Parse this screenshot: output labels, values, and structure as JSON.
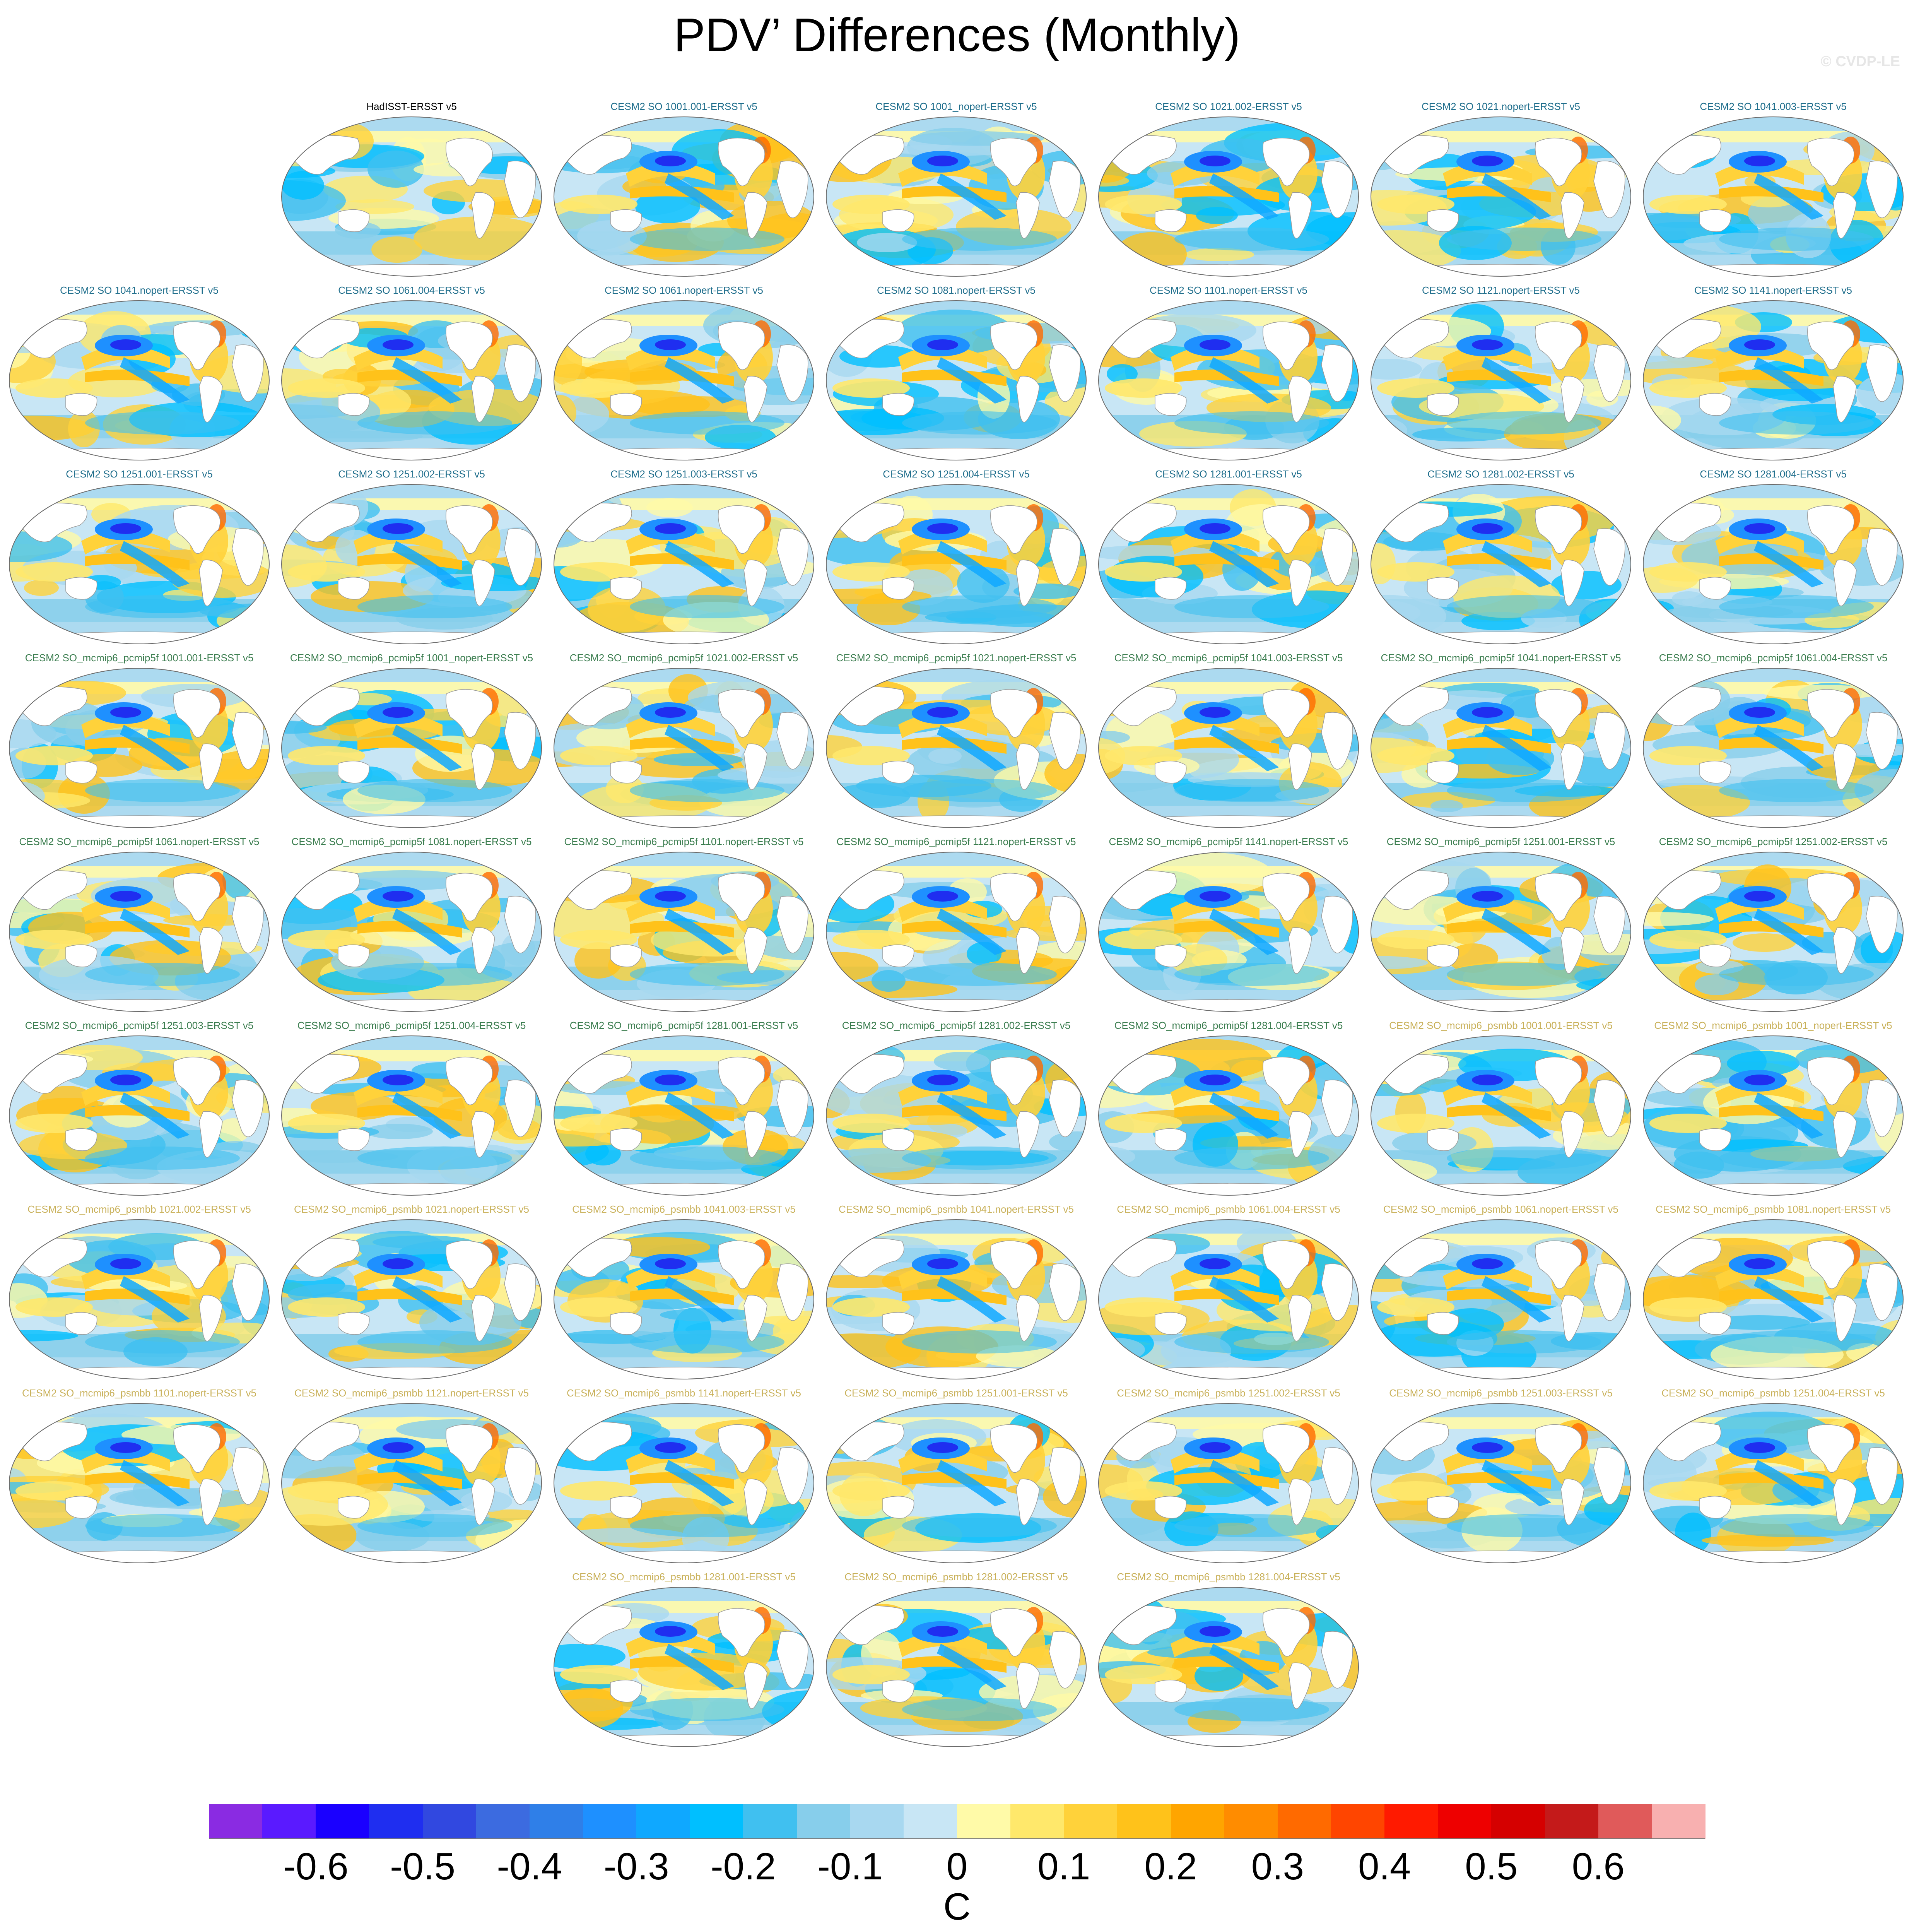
{
  "title": "PDV’ Differences (Monthly)",
  "copyright": "© CVDP-LE",
  "panel_title_colors": {
    "observation": "#000000",
    "cesm2_so": "#1f6e8c",
    "pcmip5f": "#3b7d4f",
    "psmbb": "#c9b15a"
  },
  "panels": [
    {
      "title": "HadISST-ERSST v5",
      "group": "observation"
    },
    {
      "title": "CESM2 SO 1001.001-ERSST v5",
      "group": "cesm2_so"
    },
    {
      "title": "CESM2 SO 1001_nopert-ERSST v5",
      "group": "cesm2_so"
    },
    {
      "title": "CESM2 SO 1021.002-ERSST v5",
      "group": "cesm2_so"
    },
    {
      "title": "CESM2 SO 1021.nopert-ERSST v5",
      "group": "cesm2_so"
    },
    {
      "title": "CESM2 SO 1041.003-ERSST v5",
      "group": "cesm2_so"
    },
    {
      "title": "CESM2 SO 1041.nopert-ERSST v5",
      "group": "cesm2_so"
    },
    {
      "title": "CESM2 SO 1061.004-ERSST v5",
      "group": "cesm2_so"
    },
    {
      "title": "CESM2 SO 1061.nopert-ERSST v5",
      "group": "cesm2_so"
    },
    {
      "title": "CESM2 SO 1081.nopert-ERSST v5",
      "group": "cesm2_so"
    },
    {
      "title": "CESM2 SO 1101.nopert-ERSST v5",
      "group": "cesm2_so"
    },
    {
      "title": "CESM2 SO 1121.nopert-ERSST v5",
      "group": "cesm2_so"
    },
    {
      "title": "CESM2 SO 1141.nopert-ERSST v5",
      "group": "cesm2_so"
    },
    {
      "title": "CESM2 SO 1251.001-ERSST v5",
      "group": "cesm2_so"
    },
    {
      "title": "CESM2 SO 1251.002-ERSST v5",
      "group": "cesm2_so"
    },
    {
      "title": "CESM2 SO 1251.003-ERSST v5",
      "group": "cesm2_so"
    },
    {
      "title": "CESM2 SO 1251.004-ERSST v5",
      "group": "cesm2_so"
    },
    {
      "title": "CESM2 SO 1281.001-ERSST v5",
      "group": "cesm2_so"
    },
    {
      "title": "CESM2 SO 1281.002-ERSST v5",
      "group": "cesm2_so"
    },
    {
      "title": "CESM2 SO 1281.004-ERSST v5",
      "group": "cesm2_so"
    },
    {
      "title": "CESM2 SO_mcmip6_pcmip5f 1001.001-ERSST v5",
      "group": "pcmip5f"
    },
    {
      "title": "CESM2 SO_mcmip6_pcmip5f 1001_nopert-ERSST v5",
      "group": "pcmip5f"
    },
    {
      "title": "CESM2 SO_mcmip6_pcmip5f 1021.002-ERSST v5",
      "group": "pcmip5f"
    },
    {
      "title": "CESM2 SO_mcmip6_pcmip5f 1021.nopert-ERSST v5",
      "group": "pcmip5f"
    },
    {
      "title": "CESM2 SO_mcmip6_pcmip5f 1041.003-ERSST v5",
      "group": "pcmip5f"
    },
    {
      "title": "CESM2 SO_mcmip6_pcmip5f 1041.nopert-ERSST v5",
      "group": "pcmip5f"
    },
    {
      "title": "CESM2 SO_mcmip6_pcmip5f 1061.004-ERSST v5",
      "group": "pcmip5f"
    },
    {
      "title": "CESM2 SO_mcmip6_pcmip5f 1061.nopert-ERSST v5",
      "group": "pcmip5f"
    },
    {
      "title": "CESM2 SO_mcmip6_pcmip5f 1081.nopert-ERSST v5",
      "group": "pcmip5f"
    },
    {
      "title": "CESM2 SO_mcmip6_pcmip5f 1101.nopert-ERSST v5",
      "group": "pcmip5f"
    },
    {
      "title": "CESM2 SO_mcmip6_pcmip5f 1121.nopert-ERSST v5",
      "group": "pcmip5f"
    },
    {
      "title": "CESM2 SO_mcmip6_pcmip5f 1141.nopert-ERSST v5",
      "group": "pcmip5f"
    },
    {
      "title": "CESM2 SO_mcmip6_pcmip5f 1251.001-ERSST v5",
      "group": "pcmip5f"
    },
    {
      "title": "CESM2 SO_mcmip6_pcmip5f 1251.002-ERSST v5",
      "group": "pcmip5f"
    },
    {
      "title": "CESM2 SO_mcmip6_pcmip5f 1251.003-ERSST v5",
      "group": "pcmip5f"
    },
    {
      "title": "CESM2 SO_mcmip6_pcmip5f 1251.004-ERSST v5",
      "group": "pcmip5f"
    },
    {
      "title": "CESM2 SO_mcmip6_pcmip5f 1281.001-ERSST v5",
      "group": "pcmip5f"
    },
    {
      "title": "CESM2 SO_mcmip6_pcmip5f 1281.002-ERSST v5",
      "group": "pcmip5f"
    },
    {
      "title": "CESM2 SO_mcmip6_pcmip5f 1281.004-ERSST v5",
      "group": "pcmip5f"
    },
    {
      "title": "CESM2 SO_mcmip6_psmbb 1001.001-ERSST v5",
      "group": "psmbb"
    },
    {
      "title": "CESM2 SO_mcmip6_psmbb 1001_nopert-ERSST v5",
      "group": "psmbb"
    },
    {
      "title": "CESM2 SO_mcmip6_psmbb 1021.002-ERSST v5",
      "group": "psmbb"
    },
    {
      "title": "CESM2 SO_mcmip6_psmbb 1021.nopert-ERSST v5",
      "group": "psmbb"
    },
    {
      "title": "CESM2 SO_mcmip6_psmbb 1041.003-ERSST v5",
      "group": "psmbb"
    },
    {
      "title": "CESM2 SO_mcmip6_psmbb 1041.nopert-ERSST v5",
      "group": "psmbb"
    },
    {
      "title": "CESM2 SO_mcmip6_psmbb 1061.004-ERSST v5",
      "group": "psmbb"
    },
    {
      "title": "CESM2 SO_mcmip6_psmbb 1061.nopert-ERSST v5",
      "group": "psmbb"
    },
    {
      "title": "CESM2 SO_mcmip6_psmbb 1081.nopert-ERSST v5",
      "group": "psmbb"
    },
    {
      "title": "CESM2 SO_mcmip6_psmbb 1101.nopert-ERSST v5",
      "group": "psmbb"
    },
    {
      "title": "CESM2 SO_mcmip6_psmbb 1121.nopert-ERSST v5",
      "group": "psmbb"
    },
    {
      "title": "CESM2 SO_mcmip6_psmbb 1141.nopert-ERSST v5",
      "group": "psmbb"
    },
    {
      "title": "CESM2 SO_mcmip6_psmbb 1251.001-ERSST v5",
      "group": "psmbb"
    },
    {
      "title": "CESM2 SO_mcmip6_psmbb 1251.002-ERSST v5",
      "group": "psmbb"
    },
    {
      "title": "CESM2 SO_mcmip6_psmbb 1251.003-ERSST v5",
      "group": "psmbb"
    },
    {
      "title": "CESM2 SO_mcmip6_psmbb 1251.004-ERSST v5",
      "group": "psmbb"
    },
    {
      "title": "CESM2 SO_mcmip6_psmbb 1281.001-ERSST v5",
      "group": "psmbb"
    },
    {
      "title": "CESM2 SO_mcmip6_psmbb 1281.002-ERSST v5",
      "group": "psmbb"
    },
    {
      "title": "CESM2 SO_mcmip6_psmbb 1281.004-ERSST v5",
      "group": "psmbb"
    }
  ],
  "colorbar": {
    "units": "C",
    "labels": [
      "-0.6",
      "-0.5",
      "-0.4",
      "-0.3",
      "-0.2",
      "-0.1",
      "0",
      "0.1",
      "0.2",
      "0.3",
      "0.4",
      "0.5",
      "0.6"
    ],
    "colors": [
      "#8a2be2",
      "#5a1aff",
      "#1a00ff",
      "#1f2ef0",
      "#3148e0",
      "#3c6be0",
      "#2f7fe8",
      "#1e90ff",
      "#0fa8ff",
      "#00bfff",
      "#40c0f0",
      "#87ceeb",
      "#a8d8f0",
      "#c8e6f5",
      "#fffaa8",
      "#ffe86b",
      "#ffd23a",
      "#ffc21a",
      "#ffa500",
      "#ff8c00",
      "#ff6a00",
      "#ff4500",
      "#ff1a00",
      "#ee0000",
      "#d50000",
      "#c41a1a",
      "#e05a5a",
      "#f8b0b0"
    ]
  }
}
